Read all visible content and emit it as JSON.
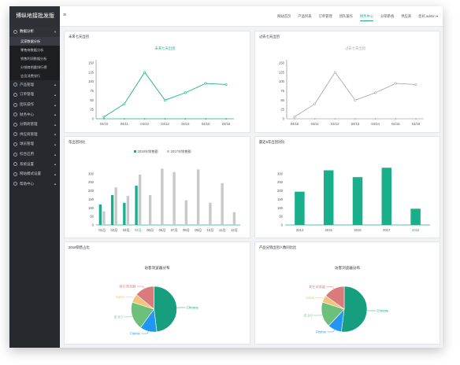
{
  "brand": "博纵地接批发版",
  "sidebar": {
    "items": [
      {
        "key": "data",
        "label": "数据分析",
        "open": true,
        "chev": "▼",
        "children": [
          "买家数据分析",
          "零售商数据分析",
          "销售利润数据分析",
          "分销商销量排行榜",
          "会员消费排行"
        ],
        "active_child": 0
      },
      {
        "key": "product",
        "label": "产品管理",
        "chev": "▲"
      },
      {
        "key": "order",
        "label": "订单管理",
        "chev": "▲"
      },
      {
        "key": "team",
        "label": "团队操作",
        "chev": "▲"
      },
      {
        "key": "finance",
        "label": "财务中心",
        "chev": "▲"
      },
      {
        "key": "distributor",
        "label": "分销商管理",
        "chev": "▲"
      },
      {
        "key": "supplier",
        "label": "供应商管理",
        "chev": "▲"
      },
      {
        "key": "member",
        "label": "球员管理",
        "chev": "▲"
      },
      {
        "key": "apps",
        "label": "综合应用",
        "chev": "▲"
      },
      {
        "key": "system",
        "label": "系统设置",
        "chev": "▲"
      },
      {
        "key": "template",
        "label": "网站模式设置",
        "chev": "▲"
      },
      {
        "key": "help",
        "label": "帮助中心",
        "chev": "▲"
      }
    ]
  },
  "topbar": {
    "menu_icon": "≡",
    "tabs": [
      "网站首页",
      "产品列表",
      "订单管理",
      "团队操作",
      "财务中心",
      "分销系统",
      "供应商",
      "您好,admin ▾"
    ],
    "active_tab": 4
  },
  "panels": {
    "p1": {
      "title": "未来七天出团"
    },
    "p2": {
      "title": "过去七天出团"
    },
    "p3": {
      "title": "年出团对比"
    },
    "p4": {
      "title": "最近5年出团对比"
    },
    "p5": {
      "title": "2018销售占比"
    },
    "p6": {
      "title": "产品分销出团人数同比比"
    }
  },
  "colors": {
    "accent": "#1aaf8b",
    "gray": "#b0b0b0"
  },
  "chart_data": [
    {
      "type": "line",
      "panel": "p1",
      "subtitle": "未来七天出团",
      "color": "#1aaf8b",
      "categories": [
        "04/10",
        "04/11",
        "04/12",
        "04/13",
        "04/14",
        "04/15",
        "04/16"
      ],
      "values": [
        5,
        40,
        125,
        50,
        70,
        95,
        92
      ],
      "ylim": [
        0,
        150
      ],
      "yticks": [
        0,
        25,
        50,
        75,
        100,
        125,
        150
      ]
    },
    {
      "type": "line",
      "panel": "p2",
      "subtitle": "过去七天出团",
      "color": "#aaaaaa",
      "categories": [
        "04/10",
        "04/11",
        "04/12",
        "04/13",
        "04/14",
        "04/15",
        "04/16"
      ],
      "values": [
        5,
        40,
        125,
        50,
        70,
        95,
        92
      ],
      "ylim": [
        0,
        150
      ],
      "yticks": [
        0,
        25,
        50,
        75,
        100,
        125,
        150
      ]
    },
    {
      "type": "bar",
      "panel": "p3",
      "categories": [
        "01月",
        "02月",
        "03月",
        "04月",
        "05月",
        "06月",
        "07月",
        "08月",
        "09月",
        "10月",
        "11月",
        "12月"
      ],
      "highlight": "04月",
      "series": [
        {
          "name": "2018年销售额",
          "color": "#1aaf8b",
          "values": [
            120,
            175,
            130,
            230,
            null,
            null,
            null,
            null,
            null,
            null,
            null,
            null
          ]
        },
        {
          "name": "2017年销售额",
          "color": "#c8c8c8",
          "values": [
            80,
            220,
            170,
            295,
            175,
            330,
            310,
            145,
            325,
            130,
            245,
            75
          ]
        }
      ],
      "ylim": [
        0,
        350
      ],
      "yticks": [
        0,
        50,
        100,
        150,
        200,
        250,
        300
      ]
    },
    {
      "type": "bar",
      "panel": "p4",
      "color": "#1aaf8b",
      "categories": [
        "2014",
        "2015",
        "2016",
        "2017",
        "2018"
      ],
      "highlight": "2018",
      "values": [
        195,
        320,
        280,
        335,
        95
      ],
      "ylim": [
        0,
        350
      ],
      "yticks": [
        0,
        50,
        100,
        150,
        200,
        250,
        300
      ]
    },
    {
      "type": "pie",
      "panel": "p5",
      "subtitle": "访客浏览器分布",
      "slices": [
        {
          "label": "Chrome",
          "value": 48,
          "color": "#169e7e"
        },
        {
          "label": "Firefox",
          "value": 12,
          "color": "#2196f3"
        },
        {
          "label": "IE 9.0",
          "value": 20,
          "color": "#6cc07a"
        },
        {
          "label": "Safari",
          "value": 6,
          "color": "#f4c37b"
        },
        {
          "label": "其它浏览器",
          "value": 14,
          "color": "#d97b7b"
        }
      ]
    },
    {
      "type": "pie",
      "panel": "p6",
      "subtitle": "访客浏览器分布",
      "slices": [
        {
          "label": "Chrome",
          "value": 52,
          "color": "#169e7e"
        },
        {
          "label": "Firefox",
          "value": 10,
          "color": "#2196f3"
        },
        {
          "label": "IE 9.0",
          "value": 18,
          "color": "#6cc07a"
        },
        {
          "label": "Safari",
          "value": 5,
          "color": "#f4c37b"
        },
        {
          "label": "其它浏览器",
          "value": 15,
          "color": "#d97b7b"
        }
      ]
    }
  ]
}
